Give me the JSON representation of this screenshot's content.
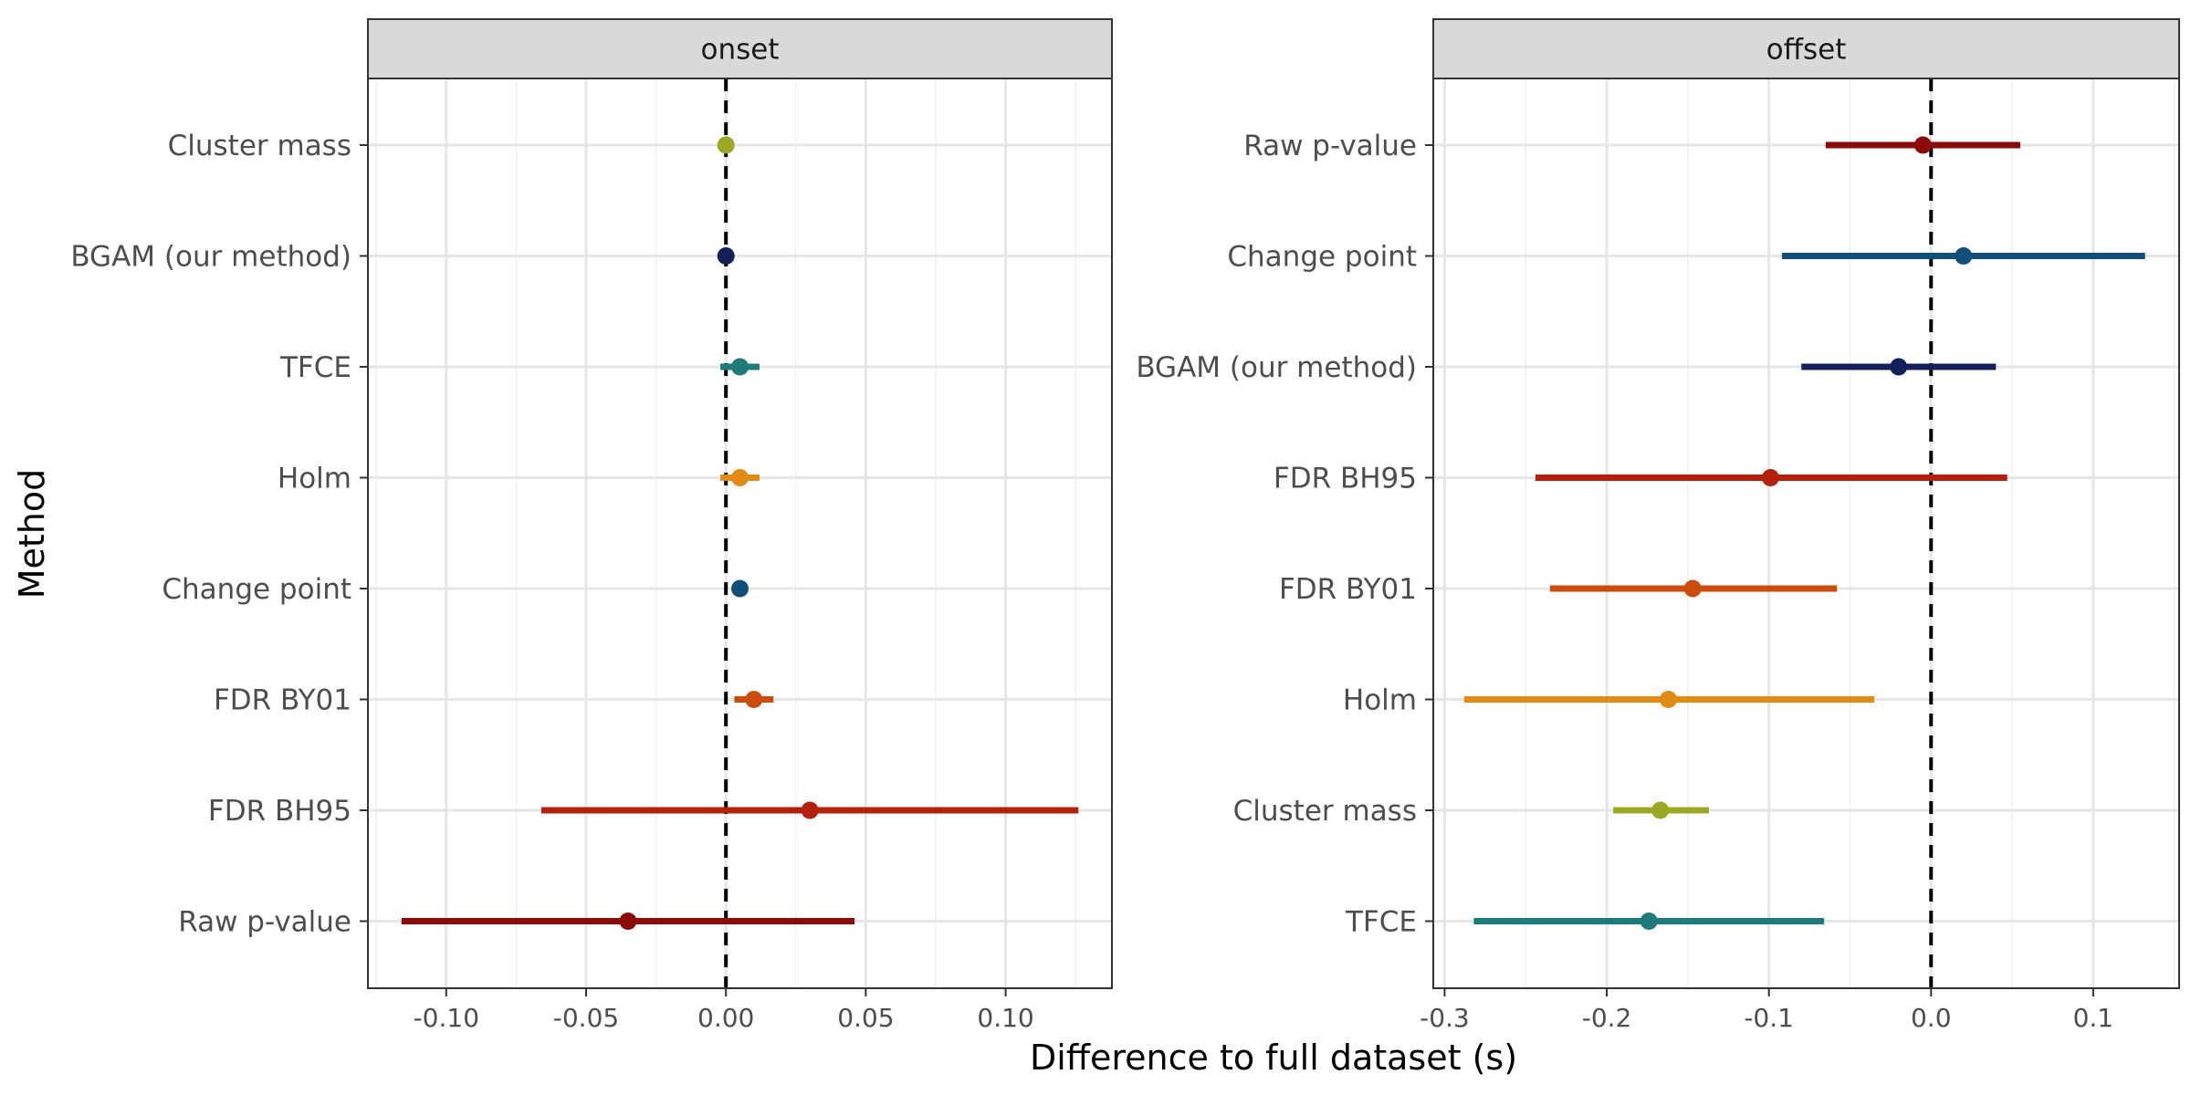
{
  "chart_data": {
    "type": "scatter",
    "xlabel": "Difference to full dataset (s)",
    "ylabel": "Method",
    "grid": true,
    "reference_line_x": 0,
    "colors": {
      "Raw p-value": "#8b0a0a",
      "FDR BH95": "#b3200c",
      "FDR BY01": "#cc4c0e",
      "Holm": "#e08c14",
      "Change point": "#114e7a",
      "BGAM (our method)": "#14205a",
      "TFCE": "#1f7a7a",
      "Cluster mass": "#9ca825"
    },
    "panels": [
      {
        "title": "onset",
        "xlim": [
          -0.128,
          0.138
        ],
        "xticks": [
          -0.1,
          -0.05,
          0.0,
          0.05,
          0.1
        ],
        "xtick_labels": [
          "-0.10",
          "-0.05",
          "0.00",
          "0.05",
          "0.10"
        ],
        "methods": [
          {
            "name": "Cluster mass",
            "estimate": 0.0,
            "lower": 0.0,
            "upper": 0.0
          },
          {
            "name": "BGAM (our method)",
            "estimate": 0.0,
            "lower": 0.0,
            "upper": 0.0
          },
          {
            "name": "TFCE",
            "estimate": 0.005,
            "lower": -0.002,
            "upper": 0.012
          },
          {
            "name": "Holm",
            "estimate": 0.005,
            "lower": -0.002,
            "upper": 0.012
          },
          {
            "name": "Change point",
            "estimate": 0.005,
            "lower": 0.005,
            "upper": 0.005
          },
          {
            "name": "FDR BY01",
            "estimate": 0.01,
            "lower": 0.003,
            "upper": 0.017
          },
          {
            "name": "FDR BH95",
            "estimate": 0.03,
            "lower": -0.066,
            "upper": 0.126
          },
          {
            "name": "Raw p-value",
            "estimate": -0.035,
            "lower": -0.116,
            "upper": 0.046
          }
        ]
      },
      {
        "title": "offset",
        "xlim": [
          -0.307,
          0.153
        ],
        "xticks": [
          -0.3,
          -0.2,
          -0.1,
          0.0,
          0.1
        ],
        "xtick_labels": [
          "-0.3",
          "-0.2",
          "-0.1",
          "0.0",
          "0.1"
        ],
        "methods": [
          {
            "name": "Raw p-value",
            "estimate": -0.005,
            "lower": -0.065,
            "upper": 0.055
          },
          {
            "name": "Change point",
            "estimate": 0.02,
            "lower": -0.092,
            "upper": 0.132
          },
          {
            "name": "BGAM (our method)",
            "estimate": -0.02,
            "lower": -0.08,
            "upper": 0.04
          },
          {
            "name": "FDR BH95",
            "estimate": -0.099,
            "lower": -0.244,
            "upper": 0.047
          },
          {
            "name": "FDR BY01",
            "estimate": -0.147,
            "lower": -0.235,
            "upper": -0.058
          },
          {
            "name": "Holm",
            "estimate": -0.162,
            "lower": -0.288,
            "upper": -0.035
          },
          {
            "name": "Cluster mass",
            "estimate": -0.167,
            "lower": -0.196,
            "upper": -0.137
          },
          {
            "name": "TFCE",
            "estimate": -0.174,
            "lower": -0.282,
            "upper": -0.066
          }
        ]
      }
    ]
  }
}
